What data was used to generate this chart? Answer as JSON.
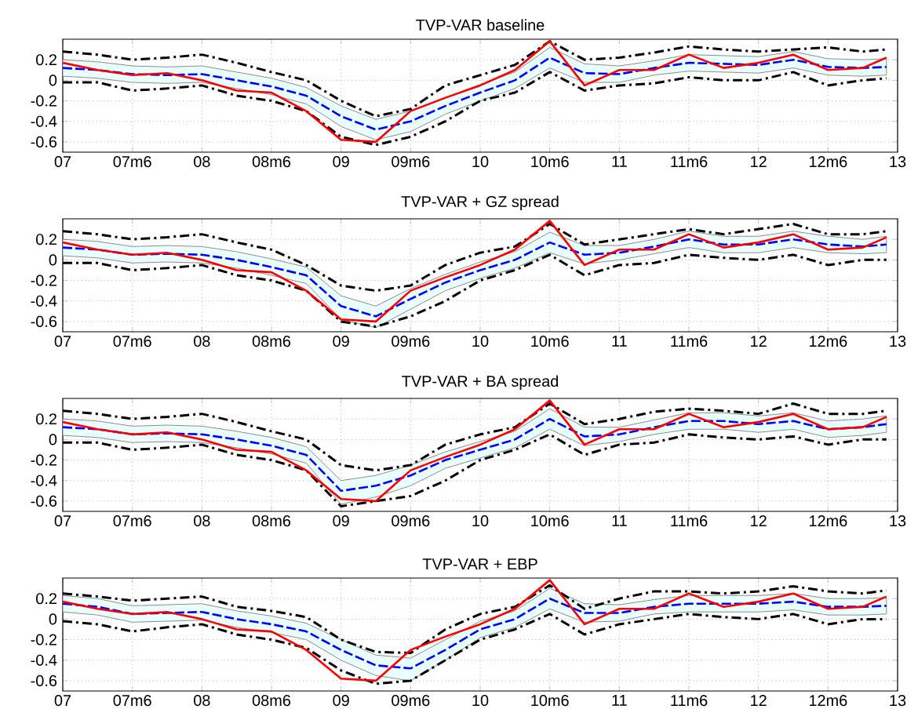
{
  "chart_data": [
    {
      "type": "line",
      "title": "TVP-VAR baseline",
      "x": [
        2007,
        2007.25,
        2007.5,
        2007.75,
        2008,
        2008.25,
        2008.5,
        2008.75,
        2009,
        2009.25,
        2009.5,
        2009.75,
        2010,
        2010.25,
        2010.5,
        2010.75,
        2011,
        2011.25,
        2011.5,
        2011.75,
        2012,
        2012.25,
        2012.5,
        2012.75,
        2012.92
      ],
      "xlim": [
        2007,
        2013
      ],
      "xticks": [
        {
          "value": 2007,
          "label": "07"
        },
        {
          "value": 2007.5,
          "label": "07m6"
        },
        {
          "value": 2008,
          "label": "08"
        },
        {
          "value": 2008.5,
          "label": "08m6"
        },
        {
          "value": 2009,
          "label": "09"
        },
        {
          "value": 2009.5,
          "label": "09m6"
        },
        {
          "value": 2010,
          "label": "10"
        },
        {
          "value": 2010.5,
          "label": "10m6"
        },
        {
          "value": 2011,
          "label": "11"
        },
        {
          "value": 2011.5,
          "label": "11m6"
        },
        {
          "value": 2012,
          "label": "12"
        },
        {
          "value": 2012.5,
          "label": "12m6"
        },
        {
          "value": 2013,
          "label": "13"
        }
      ],
      "ylim": [
        -0.7,
        0.4
      ],
      "yticks": [
        -0.6,
        -0.4,
        -0.2,
        0,
        0.2
      ],
      "grid": true,
      "marker": "none",
      "series": [
        {
          "color": "#0000ff",
          "line_style": "dashed",
          "values": [
            0.12,
            0.1,
            0.06,
            0.05,
            0.06,
            0.0,
            -0.06,
            -0.15,
            -0.35,
            -0.48,
            -0.4,
            -0.25,
            -0.12,
            0.0,
            0.22,
            0.07,
            0.06,
            0.12,
            0.17,
            0.16,
            0.15,
            0.2,
            0.13,
            0.12,
            0.13
          ],
          "lower": [
            0.04,
            0.02,
            -0.02,
            -0.03,
            -0.02,
            -0.08,
            -0.14,
            -0.23,
            -0.45,
            -0.58,
            -0.5,
            -0.33,
            -0.2,
            -0.08,
            0.12,
            -0.02,
            -0.02,
            0.05,
            0.09,
            0.08,
            0.07,
            0.12,
            0.05,
            0.04,
            0.05
          ],
          "upper": [
            0.2,
            0.18,
            0.14,
            0.13,
            0.14,
            0.08,
            0.02,
            -0.07,
            -0.25,
            -0.38,
            -0.3,
            -0.17,
            -0.04,
            0.08,
            0.32,
            0.16,
            0.14,
            0.19,
            0.25,
            0.24,
            0.23,
            0.28,
            0.21,
            0.2,
            0.21
          ]
        },
        {
          "color": "#000000",
          "line_style": "dashdot",
          "values": [
            0.28,
            0.25,
            0.2,
            0.22,
            0.25,
            0.17,
            0.08,
            0.0,
            -0.2,
            -0.35,
            -0.28,
            -0.05,
            0.05,
            0.15,
            0.38,
            0.2,
            0.22,
            0.27,
            0.33,
            0.3,
            0.28,
            0.3,
            0.32,
            0.28,
            0.3
          ]
        },
        {
          "color": "#000000",
          "line_style": "dashdot",
          "values": [
            -0.02,
            -0.02,
            -0.1,
            -0.08,
            -0.05,
            -0.15,
            -0.2,
            -0.3,
            -0.55,
            -0.63,
            -0.55,
            -0.4,
            -0.2,
            -0.12,
            0.08,
            -0.1,
            -0.05,
            -0.03,
            0.03,
            0.0,
            0.0,
            0.08,
            -0.05,
            0.0,
            0.02
          ]
        },
        {
          "color": "#ff0000",
          "line_style": "solid",
          "values": [
            0.17,
            0.1,
            0.05,
            0.07,
            0.0,
            -0.1,
            -0.12,
            -0.3,
            -0.58,
            -0.6,
            -0.3,
            -0.17,
            -0.05,
            0.1,
            0.38,
            -0.05,
            0.1,
            0.1,
            0.25,
            0.12,
            0.17,
            0.25,
            0.1,
            0.12,
            0.22
          ]
        }
      ]
    },
    {
      "type": "line",
      "title": "TVP-VAR + GZ spread",
      "x": [
        2007,
        2007.25,
        2007.5,
        2007.75,
        2008,
        2008.25,
        2008.5,
        2008.75,
        2009,
        2009.25,
        2009.5,
        2009.75,
        2010,
        2010.25,
        2010.5,
        2010.75,
        2011,
        2011.25,
        2011.5,
        2011.75,
        2012,
        2012.25,
        2012.5,
        2012.75,
        2012.92
      ],
      "xlim": [
        2007,
        2013
      ],
      "xticks": [
        {
          "value": 2007,
          "label": "07"
        },
        {
          "value": 2007.5,
          "label": "07m6"
        },
        {
          "value": 2008,
          "label": "08"
        },
        {
          "value": 2008.5,
          "label": "08m6"
        },
        {
          "value": 2009,
          "label": "09"
        },
        {
          "value": 2009.5,
          "label": "09m6"
        },
        {
          "value": 2010,
          "label": "10"
        },
        {
          "value": 2010.5,
          "label": "10m6"
        },
        {
          "value": 2011,
          "label": "11"
        },
        {
          "value": 2011.5,
          "label": "11m6"
        },
        {
          "value": 2012,
          "label": "12"
        },
        {
          "value": 2012.5,
          "label": "12m6"
        },
        {
          "value": 2013,
          "label": "13"
        }
      ],
      "ylim": [
        -0.7,
        0.4
      ],
      "yticks": [
        -0.6,
        -0.4,
        -0.2,
        0,
        0.2
      ],
      "grid": true,
      "marker": "none",
      "series": [
        {
          "color": "#0000ff",
          "line_style": "dashed",
          "values": [
            0.12,
            0.1,
            0.05,
            0.06,
            0.05,
            0.0,
            -0.07,
            -0.15,
            -0.45,
            -0.55,
            -0.38,
            -0.22,
            -0.1,
            0.0,
            0.17,
            0.05,
            0.07,
            0.13,
            0.2,
            0.15,
            0.15,
            0.2,
            0.15,
            0.13,
            0.15
          ],
          "lower": [
            0.04,
            0.02,
            -0.03,
            -0.02,
            -0.03,
            -0.08,
            -0.15,
            -0.23,
            -0.58,
            -0.66,
            -0.48,
            -0.3,
            -0.18,
            -0.08,
            0.07,
            -0.04,
            0.0,
            0.06,
            0.12,
            0.07,
            0.07,
            0.12,
            0.07,
            0.06,
            0.07
          ],
          "upper": [
            0.2,
            0.18,
            0.13,
            0.14,
            0.13,
            0.08,
            0.01,
            -0.07,
            -0.35,
            -0.45,
            -0.28,
            -0.14,
            -0.02,
            0.08,
            0.27,
            0.14,
            0.14,
            0.2,
            0.28,
            0.23,
            0.23,
            0.28,
            0.23,
            0.2,
            0.23
          ]
        },
        {
          "color": "#000000",
          "line_style": "dashdot",
          "values": [
            0.28,
            0.25,
            0.2,
            0.22,
            0.25,
            0.17,
            0.1,
            -0.05,
            -0.25,
            -0.3,
            -0.25,
            -0.05,
            0.07,
            0.13,
            0.35,
            0.15,
            0.2,
            0.25,
            0.3,
            0.25,
            0.3,
            0.35,
            0.25,
            0.25,
            0.28
          ]
        },
        {
          "color": "#000000",
          "line_style": "dashdot",
          "values": [
            -0.03,
            -0.03,
            -0.1,
            -0.08,
            -0.05,
            -0.15,
            -0.2,
            -0.3,
            -0.6,
            -0.65,
            -0.55,
            -0.4,
            -0.2,
            -0.1,
            0.05,
            -0.15,
            -0.05,
            -0.03,
            0.05,
            0.02,
            0.0,
            0.05,
            -0.05,
            0.0,
            0.0
          ]
        },
        {
          "color": "#ff0000",
          "line_style": "solid",
          "values": [
            0.17,
            0.1,
            0.05,
            0.07,
            0.0,
            -0.1,
            -0.12,
            -0.3,
            -0.58,
            -0.6,
            -0.3,
            -0.17,
            -0.05,
            0.1,
            0.38,
            -0.05,
            0.1,
            0.1,
            0.25,
            0.12,
            0.17,
            0.25,
            0.1,
            0.12,
            0.22
          ]
        }
      ]
    },
    {
      "type": "line",
      "title": "TVP-VAR + BA spread",
      "x": [
        2007,
        2007.25,
        2007.5,
        2007.75,
        2008,
        2008.25,
        2008.5,
        2008.75,
        2009,
        2009.25,
        2009.5,
        2009.75,
        2010,
        2010.25,
        2010.5,
        2010.75,
        2011,
        2011.25,
        2011.5,
        2011.75,
        2012,
        2012.25,
        2012.5,
        2012.75,
        2012.92
      ],
      "xlim": [
        2007,
        2013
      ],
      "xticks": [
        {
          "value": 2007,
          "label": "07"
        },
        {
          "value": 2007.5,
          "label": "07m6"
        },
        {
          "value": 2008,
          "label": "08"
        },
        {
          "value": 2008.5,
          "label": "08m6"
        },
        {
          "value": 2009,
          "label": "09"
        },
        {
          "value": 2009.5,
          "label": "09m6"
        },
        {
          "value": 2010,
          "label": "10"
        },
        {
          "value": 2010.5,
          "label": "10m6"
        },
        {
          "value": 2011,
          "label": "11"
        },
        {
          "value": 2011.5,
          "label": "11m6"
        },
        {
          "value": 2012,
          "label": "12"
        },
        {
          "value": 2012.5,
          "label": "12m6"
        },
        {
          "value": 2013,
          "label": "13"
        }
      ],
      "ylim": [
        -0.7,
        0.4
      ],
      "yticks": [
        -0.6,
        -0.4,
        -0.2,
        0,
        0.2
      ],
      "grid": true,
      "marker": "none",
      "series": [
        {
          "color": "#0000ff",
          "line_style": "dashed",
          "values": [
            0.12,
            0.1,
            0.05,
            0.06,
            0.05,
            0.0,
            -0.06,
            -0.15,
            -0.5,
            -0.45,
            -0.35,
            -0.2,
            -0.1,
            0.0,
            0.2,
            0.03,
            0.05,
            0.12,
            0.18,
            0.18,
            0.15,
            0.18,
            0.1,
            0.12,
            0.15
          ],
          "lower": [
            0.04,
            0.02,
            -0.03,
            -0.02,
            -0.03,
            -0.08,
            -0.14,
            -0.23,
            -0.63,
            -0.56,
            -0.45,
            -0.28,
            -0.18,
            -0.08,
            0.1,
            -0.06,
            -0.02,
            0.05,
            0.1,
            0.1,
            0.07,
            0.1,
            0.02,
            0.04,
            0.07
          ],
          "upper": [
            0.2,
            0.18,
            0.13,
            0.14,
            0.13,
            0.08,
            0.02,
            -0.07,
            -0.4,
            -0.35,
            -0.25,
            -0.12,
            -0.02,
            0.08,
            0.3,
            0.12,
            0.12,
            0.19,
            0.26,
            0.26,
            0.23,
            0.26,
            0.18,
            0.2,
            0.23
          ]
        },
        {
          "color": "#000000",
          "line_style": "dashdot",
          "values": [
            0.28,
            0.25,
            0.2,
            0.22,
            0.25,
            0.17,
            0.08,
            0.0,
            -0.25,
            -0.3,
            -0.25,
            -0.05,
            0.05,
            0.12,
            0.35,
            0.15,
            0.2,
            0.27,
            0.3,
            0.28,
            0.25,
            0.35,
            0.25,
            0.25,
            0.28
          ]
        },
        {
          "color": "#000000",
          "line_style": "dashdot",
          "values": [
            -0.03,
            -0.03,
            -0.1,
            -0.08,
            -0.05,
            -0.15,
            -0.2,
            -0.3,
            -0.65,
            -0.6,
            -0.55,
            -0.4,
            -0.2,
            -0.1,
            0.05,
            -0.15,
            -0.05,
            -0.03,
            0.05,
            0.02,
            0.0,
            0.03,
            -0.05,
            0.0,
            0.0
          ]
        },
        {
          "color": "#ff0000",
          "line_style": "solid",
          "values": [
            0.17,
            0.1,
            0.05,
            0.07,
            0.0,
            -0.1,
            -0.12,
            -0.3,
            -0.58,
            -0.6,
            -0.3,
            -0.17,
            -0.05,
            0.1,
            0.38,
            -0.05,
            0.1,
            0.1,
            0.25,
            0.12,
            0.17,
            0.25,
            0.1,
            0.12,
            0.22
          ]
        }
      ]
    },
    {
      "type": "line",
      "title": "TVP-VAR + EBP",
      "x": [
        2007,
        2007.25,
        2007.5,
        2007.75,
        2008,
        2008.25,
        2008.5,
        2008.75,
        2009,
        2009.25,
        2009.5,
        2009.75,
        2010,
        2010.25,
        2010.5,
        2010.75,
        2011,
        2011.25,
        2011.5,
        2011.75,
        2012,
        2012.25,
        2012.5,
        2012.75,
        2012.92
      ],
      "xlim": [
        2007,
        2013
      ],
      "xticks": [
        {
          "value": 2007,
          "label": "07"
        },
        {
          "value": 2007.5,
          "label": "07m6"
        },
        {
          "value": 2008,
          "label": "08"
        },
        {
          "value": 2008.5,
          "label": "08m6"
        },
        {
          "value": 2009,
          "label": "09"
        },
        {
          "value": 2009.5,
          "label": "09m6"
        },
        {
          "value": 2010,
          "label": "10"
        },
        {
          "value": 2010.5,
          "label": "10m6"
        },
        {
          "value": 2011,
          "label": "11"
        },
        {
          "value": 2011.5,
          "label": "11m6"
        },
        {
          "value": 2012,
          "label": "12"
        },
        {
          "value": 2012.5,
          "label": "12m6"
        },
        {
          "value": 2013,
          "label": "13"
        }
      ],
      "ylim": [
        -0.7,
        0.4
      ],
      "yticks": [
        -0.6,
        -0.4,
        -0.2,
        0,
        0.2
      ],
      "grid": true,
      "marker": "none",
      "series": [
        {
          "color": "#0000ff",
          "line_style": "dashed",
          "values": [
            0.15,
            0.12,
            0.05,
            0.06,
            0.07,
            0.0,
            -0.05,
            -0.12,
            -0.3,
            -0.45,
            -0.48,
            -0.3,
            -0.1,
            0.0,
            0.2,
            0.06,
            0.06,
            0.12,
            0.15,
            0.15,
            0.15,
            0.17,
            0.12,
            0.12,
            0.13
          ],
          "lower": [
            0.07,
            0.04,
            -0.03,
            -0.02,
            -0.01,
            -0.08,
            -0.13,
            -0.2,
            -0.4,
            -0.55,
            -0.6,
            -0.4,
            -0.18,
            -0.08,
            0.1,
            -0.03,
            -0.02,
            0.05,
            0.07,
            0.07,
            0.07,
            0.09,
            0.04,
            0.04,
            0.05
          ],
          "upper": [
            0.23,
            0.2,
            0.13,
            0.14,
            0.15,
            0.08,
            0.03,
            -0.04,
            -0.2,
            -0.35,
            -0.38,
            -0.2,
            -0.02,
            0.08,
            0.3,
            0.15,
            0.14,
            0.19,
            0.23,
            0.23,
            0.23,
            0.25,
            0.2,
            0.2,
            0.21
          ]
        },
        {
          "color": "#000000",
          "line_style": "dashdot",
          "values": [
            0.25,
            0.22,
            0.18,
            0.2,
            0.22,
            0.12,
            0.08,
            0.02,
            -0.2,
            -0.32,
            -0.33,
            -0.1,
            0.05,
            0.12,
            0.33,
            0.1,
            0.2,
            0.27,
            0.27,
            0.25,
            0.27,
            0.32,
            0.27,
            0.25,
            0.28
          ]
        },
        {
          "color": "#000000",
          "line_style": "dashdot",
          "values": [
            -0.02,
            -0.05,
            -0.12,
            -0.08,
            -0.05,
            -0.15,
            -0.2,
            -0.28,
            -0.5,
            -0.63,
            -0.6,
            -0.4,
            -0.2,
            -0.1,
            0.05,
            -0.15,
            -0.05,
            0.0,
            0.05,
            0.02,
            0.0,
            0.05,
            -0.05,
            0.0,
            0.0
          ]
        },
        {
          "color": "#ff0000",
          "line_style": "solid",
          "values": [
            0.17,
            0.1,
            0.05,
            0.07,
            0.0,
            -0.1,
            -0.12,
            -0.3,
            -0.58,
            -0.6,
            -0.3,
            -0.17,
            -0.05,
            0.1,
            0.38,
            -0.05,
            0.1,
            0.1,
            0.25,
            0.12,
            0.17,
            0.25,
            0.1,
            0.12,
            0.22
          ]
        }
      ]
    }
  ]
}
